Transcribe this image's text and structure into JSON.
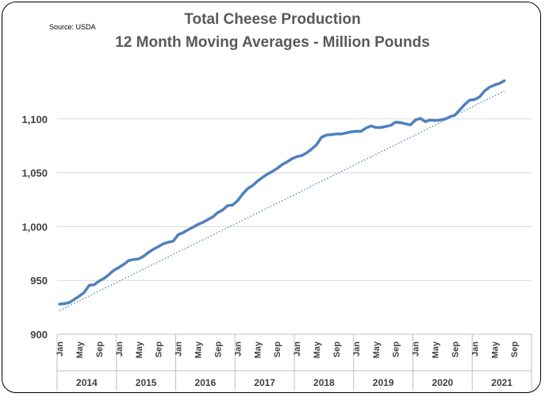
{
  "source_note": "Source: USDA",
  "title_line1": "Total Cheese Production",
  "title_line2": "12 Month Moving Averages - Million Pounds",
  "chart_data": {
    "type": "line",
    "title": "Total Cheese Production\n12 Month Moving Averages - Million Pounds",
    "xlabel": "",
    "ylabel": "",
    "ylim": [
      900,
      1150
    ],
    "y_ticks": [
      900,
      950,
      1000,
      1050,
      1100
    ],
    "y_tick_labels": [
      "900",
      "950",
      "1,000",
      "1,050",
      "1,100"
    ],
    "grid": true,
    "legend": "none",
    "x_month_labels": [
      "Jan",
      "May",
      "Sep"
    ],
    "years": [
      "2014",
      "2015",
      "2016",
      "2017",
      "2018",
      "2019",
      "2020",
      "2021"
    ],
    "series": [
      {
        "values": [
          928,
          928.5,
          929.5,
          932.5,
          935.5,
          939,
          945.5,
          946,
          949.5,
          952,
          955.5,
          959.5,
          962,
          965,
          968.5,
          969.5,
          970,
          972.5,
          976,
          979,
          981.5,
          984,
          985.5,
          986.5,
          992.5,
          994.5,
          997,
          999.5,
          1002,
          1004,
          1006.5,
          1009,
          1013,
          1015.5,
          1019.5,
          1020,
          1024,
          1030,
          1035,
          1038,
          1042,
          1045.5,
          1048.5,
          1051,
          1054,
          1057.5,
          1060,
          1063,
          1065,
          1066,
          1068.5,
          1072,
          1076,
          1083,
          1085,
          1085.5,
          1086,
          1086,
          1087,
          1088,
          1088.5,
          1088.5,
          1091.5,
          1093.5,
          1092,
          1092,
          1093,
          1094,
          1097,
          1096.5,
          1095.5,
          1094.5,
          1099,
          1100.5,
          1097.5,
          1099,
          1098.5,
          1099,
          1100,
          1102,
          1103.5,
          1108.5,
          1113.5,
          1117.5,
          1118,
          1120.5,
          1126,
          1129.5,
          1131.5,
          1133,
          1135.5
        ],
        "color": "#4f81bd"
      },
      {
        "values": [
          922,
          1126
        ],
        "color": "#4f81bd",
        "style": "dotted"
      }
    ]
  }
}
